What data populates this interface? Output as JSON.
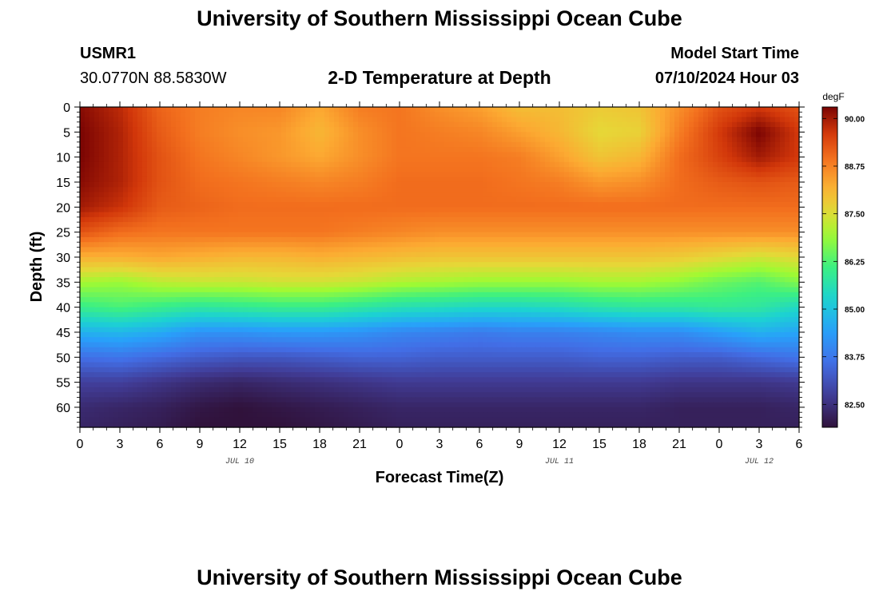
{
  "header": {
    "title": "University of Southern Mississippi Ocean Cube",
    "station_id": "USMR1",
    "coordinates": "30.0770N  88.5830W",
    "model_start_label": "Model Start Time",
    "model_start_time": "07/10/2024 Hour 03"
  },
  "footer": {
    "title": "University of Southern Mississippi Ocean Cube"
  },
  "chart_data": {
    "type": "heatmap",
    "title": "2-D Temperature at Depth",
    "xlabel": "Forecast Time(Z)",
    "ylabel": "Depth (ft)",
    "colorbar_label": "degF",
    "x_tick_labels": [
      "0",
      "3",
      "6",
      "9",
      "12",
      "15",
      "18",
      "21",
      "0",
      "3",
      "6",
      "9",
      "12",
      "15",
      "18",
      "21",
      "0",
      "3",
      "6"
    ],
    "x_range_hours": [
      0,
      54
    ],
    "date_labels": [
      {
        "text": "JUL 10",
        "hour": 12
      },
      {
        "text": "JUL 11",
        "hour": 36
      },
      {
        "text": "JUL 12",
        "hour": 51
      }
    ],
    "y_ticks": [
      0,
      5,
      10,
      15,
      20,
      25,
      30,
      35,
      40,
      45,
      50,
      55,
      60
    ],
    "y_range": [
      0,
      64
    ],
    "y_inverted": true,
    "colorbar_ticks": [
      "82.50",
      "83.75",
      "85.00",
      "86.25",
      "87.50",
      "88.75",
      "90.00"
    ],
    "color_range": [
      81.9,
      90.3
    ],
    "columns_hours": [
      0,
      3,
      6,
      9,
      12,
      15,
      18,
      21,
      24,
      27,
      30,
      33,
      36,
      39,
      42,
      45,
      48,
      51,
      54
    ],
    "rows_depth": [
      0,
      5,
      10,
      15,
      20,
      25,
      30,
      35,
      40,
      45,
      50,
      55,
      60,
      64
    ],
    "values": [
      [
        90.2,
        89.8,
        89.1,
        88.8,
        88.7,
        88.7,
        88.3,
        88.8,
        88.9,
        88.6,
        88.4,
        88.0,
        88.0,
        87.8,
        87.9,
        88.6,
        89.3,
        89.6,
        89.3
      ],
      [
        90.3,
        89.9,
        89.2,
        88.8,
        88.6,
        88.5,
        88.1,
        88.6,
        88.9,
        88.8,
        88.7,
        88.4,
        88.1,
        87.6,
        87.7,
        88.8,
        89.6,
        90.3,
        89.6
      ],
      [
        90.3,
        89.9,
        89.3,
        88.9,
        88.7,
        88.5,
        88.3,
        88.6,
        88.9,
        88.9,
        88.9,
        88.8,
        88.4,
        87.9,
        88.1,
        89.0,
        89.5,
        90.0,
        89.6
      ],
      [
        90.2,
        89.9,
        89.3,
        89.0,
        88.9,
        88.8,
        88.7,
        88.8,
        89.0,
        89.0,
        89.0,
        88.9,
        88.8,
        88.5,
        88.6,
        89.0,
        89.2,
        89.3,
        89.2
      ],
      [
        90.0,
        89.7,
        89.2,
        89.1,
        89.0,
        89.0,
        89.0,
        89.0,
        89.0,
        89.0,
        89.0,
        89.0,
        89.0,
        89.0,
        89.0,
        89.0,
        89.0,
        89.0,
        89.0
      ],
      [
        89.3,
        89.0,
        88.9,
        88.9,
        88.9,
        88.9,
        88.9,
        88.8,
        88.7,
        88.6,
        88.6,
        88.6,
        88.6,
        88.6,
        88.6,
        88.6,
        88.6,
        88.6,
        88.6
      ],
      [
        88.2,
        88.2,
        88.3,
        88.2,
        88.1,
        88.1,
        88.2,
        88.1,
        88.0,
        87.9,
        87.9,
        87.9,
        87.9,
        87.9,
        87.9,
        87.8,
        87.6,
        87.4,
        87.6
      ],
      [
        87.0,
        86.9,
        87.2,
        87.3,
        87.3,
        87.4,
        87.4,
        87.3,
        87.1,
        87.0,
        86.9,
        86.9,
        86.9,
        87.0,
        87.0,
        86.8,
        86.5,
        86.3,
        86.7
      ],
      [
        86.0,
        86.2,
        86.0,
        85.8,
        85.9,
        86.0,
        86.0,
        85.8,
        85.6,
        85.5,
        85.4,
        85.4,
        85.5,
        85.7,
        85.8,
        85.8,
        85.9,
        85.8,
        85.4
      ],
      [
        84.7,
        84.8,
        84.6,
        84.2,
        84.2,
        84.3,
        84.3,
        84.2,
        84.0,
        83.9,
        83.8,
        83.9,
        83.9,
        84.0,
        84.1,
        84.1,
        84.4,
        84.7,
        84.5
      ],
      [
        83.6,
        83.7,
        83.5,
        83.3,
        83.2,
        83.2,
        83.3,
        83.4,
        83.4,
        83.3,
        83.3,
        83.3,
        83.3,
        83.4,
        83.4,
        83.3,
        83.3,
        83.5,
        83.7
      ],
      [
        82.8,
        82.8,
        82.6,
        82.4,
        82.3,
        82.4,
        82.5,
        82.6,
        82.7,
        82.7,
        82.7,
        82.7,
        82.7,
        82.7,
        82.7,
        82.6,
        82.6,
        82.6,
        82.7
      ],
      [
        82.4,
        82.3,
        82.2,
        82.0,
        81.9,
        82.0,
        82.1,
        82.2,
        82.3,
        82.3,
        82.3,
        82.3,
        82.3,
        82.3,
        82.3,
        82.2,
        82.2,
        82.2,
        82.3
      ],
      [
        82.3,
        82.2,
        82.1,
        81.9,
        81.9,
        81.9,
        82.0,
        82.1,
        82.2,
        82.2,
        82.2,
        82.2,
        82.2,
        82.2,
        82.2,
        82.2,
        82.2,
        82.2,
        82.2
      ]
    ]
  }
}
